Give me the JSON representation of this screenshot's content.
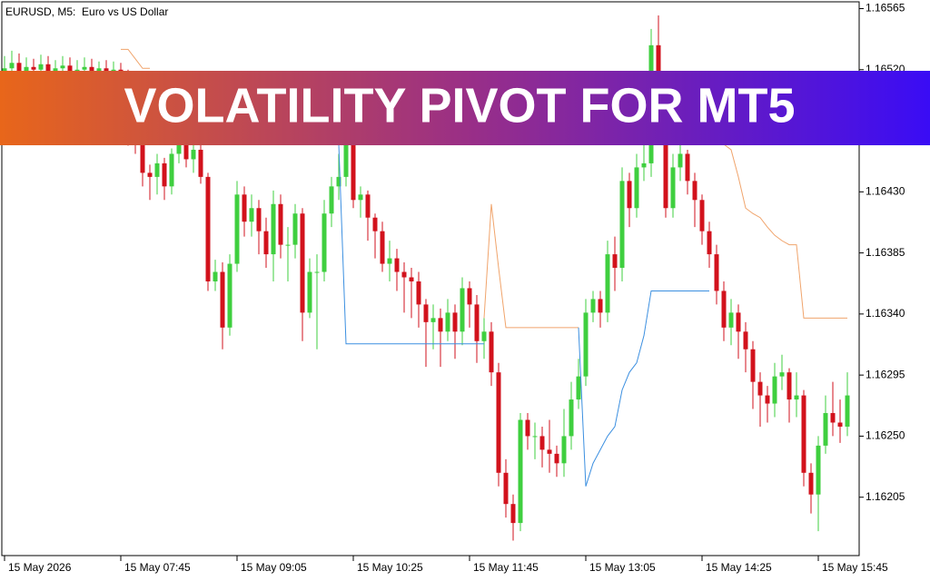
{
  "chart_data": {
    "type": "candlestick",
    "title": "EURUSD, M5:  Euro vs US Dollar",
    "annotation": "VOLATILITY PIVOT FOR MT5",
    "up_color": "#3fcf3f",
    "down_color": "#d2121c",
    "categories": [
      "15 May 2026",
      null,
      null,
      null,
      null,
      null,
      null,
      null,
      null,
      null,
      null,
      null,
      null,
      null,
      null,
      null,
      "15 May 07:45",
      null,
      null,
      null,
      null,
      null,
      null,
      null,
      null,
      null,
      null,
      null,
      null,
      null,
      null,
      null,
      "15 May 09:05",
      null,
      null,
      null,
      null,
      null,
      null,
      null,
      null,
      null,
      null,
      null,
      null,
      null,
      null,
      null,
      "15 May 10:25",
      null,
      null,
      null,
      null,
      null,
      null,
      null,
      null,
      null,
      null,
      null,
      null,
      null,
      null,
      null,
      "15 May 11:45",
      null,
      null,
      null,
      null,
      null,
      null,
      null,
      null,
      null,
      null,
      null,
      null,
      null,
      null,
      null,
      "15 May 13:05",
      null,
      null,
      null,
      null,
      null,
      null,
      null,
      null,
      null,
      null,
      null,
      null,
      null,
      null,
      null,
      "15 May 14:25",
      null,
      null,
      null,
      null,
      null,
      null,
      null,
      null,
      null,
      null,
      null,
      null,
      null,
      null,
      null,
      "15 May 15:45",
      null,
      null,
      null,
      null
    ],
    "open": [
      1.16518,
      1.16521,
      1.16525,
      1.16518,
      1.16522,
      1.1652,
      1.16524,
      1.16519,
      1.16521,
      1.16523,
      1.16518,
      1.1652,
      1.16522,
      1.16519,
      1.16521,
      1.16517,
      1.1652,
      1.16516,
      1.16471,
      1.16465,
      1.16444,
      1.16441,
      1.16451,
      1.16434,
      1.16458,
      1.16465,
      1.16454,
      1.16461,
      1.16441,
      1.16364,
      1.16371,
      1.1633,
      1.16377,
      1.16428,
      1.16408,
      1.16418,
      1.16401,
      1.16384,
      1.16421,
      1.16391,
      1.16391,
      1.16414,
      1.16341,
      1.16371,
      1.16371,
      1.16414,
      1.16434,
      1.16441,
      1.16465,
      1.16424,
      1.16428,
      1.16411,
      1.16401,
      1.16377,
      1.16381,
      1.16371,
      1.16367,
      1.16364,
      1.16347,
      1.16334,
      1.16337,
      1.16327,
      1.16341,
      1.16327,
      1.16359,
      1.16347,
      1.1632,
      1.16327,
      1.16297,
      1.16223,
      1.162,
      1.16186,
      1.16262,
      1.1625,
      1.1625,
      1.1624,
      1.16237,
      1.1623,
      1.1625,
      1.16277,
      1.16294,
      1.16341,
      1.16351,
      1.16341,
      1.16384,
      1.16374,
      1.16438,
      1.16418,
      1.16448,
      1.16451,
      1.16538,
      1.16511,
      1.16418,
      1.16448,
      1.16458,
      1.16438,
      1.16424,
      1.16401,
      1.16384,
      1.16357,
      1.1633,
      1.16341,
      1.16327,
      1.16314,
      1.1629,
      1.1628,
      1.16274,
      1.16294,
      1.16297,
      1.16277,
      1.1628,
      1.16223,
      1.16207,
      1.16243,
      1.16267,
      1.1626,
      1.16257
    ],
    "high": [
      1.1653,
      1.16534,
      1.16532,
      1.16529,
      1.16528,
      1.16531,
      1.1653,
      1.16527,
      1.1653,
      1.16529,
      1.16527,
      1.16529,
      1.16528,
      1.16526,
      1.16527,
      1.16526,
      1.16525,
      1.1652,
      1.16478,
      1.1647,
      1.1645,
      1.16458,
      1.16455,
      1.16462,
      1.16475,
      1.1647,
      1.16468,
      1.16465,
      1.16444,
      1.1638,
      1.16378,
      1.16384,
      1.16438,
      1.16434,
      1.16428,
      1.16424,
      1.16411,
      1.16431,
      1.16428,
      1.16404,
      1.16421,
      1.16418,
      1.16381,
      1.16384,
      1.16424,
      1.16441,
      1.16458,
      1.16485,
      1.16471,
      1.16434,
      1.16431,
      1.16414,
      1.16408,
      1.16394,
      1.16388,
      1.16378,
      1.16374,
      1.16371,
      1.16351,
      1.16347,
      1.16344,
      1.16351,
      1.16347,
      1.16367,
      1.16364,
      1.16354,
      1.16337,
      1.16334,
      1.16304,
      1.16233,
      1.16207,
      1.16267,
      1.16267,
      1.1626,
      1.16257,
      1.16262,
      1.16243,
      1.1627,
      1.1629,
      1.16307,
      1.16351,
      1.16357,
      1.16357,
      1.16394,
      1.16397,
      1.16448,
      1.16444,
      1.16458,
      1.16471,
      1.1655,
      1.1656,
      1.16518,
      1.16458,
      1.16468,
      1.16461,
      1.16444,
      1.16428,
      1.16408,
      1.16391,
      1.16364,
      1.16351,
      1.16347,
      1.16334,
      1.1632,
      1.16297,
      1.16287,
      1.16304,
      1.1631,
      1.163,
      1.16297,
      1.16284,
      1.1623,
      1.1625,
      1.1628,
      1.1629,
      1.16277,
      1.16297
    ],
    "low": [
      1.1651,
      1.16514,
      1.16511,
      1.16512,
      1.16514,
      1.16513,
      1.16512,
      1.16513,
      1.16515,
      1.16511,
      1.16512,
      1.16514,
      1.16512,
      1.16513,
      1.1651,
      1.16511,
      1.165,
      1.16464,
      1.16458,
      1.16434,
      1.16424,
      1.16428,
      1.16424,
      1.16428,
      1.16451,
      1.16448,
      1.16444,
      1.16436,
      1.16357,
      1.16357,
      1.16314,
      1.16324,
      1.16371,
      1.16397,
      1.16397,
      1.16384,
      1.16374,
      1.16364,
      1.16381,
      1.16364,
      1.16381,
      1.1632,
      1.16337,
      1.16314,
      1.16364,
      1.16404,
      1.16424,
      1.16434,
      1.16418,
      1.16411,
      1.16394,
      1.16381,
      1.16371,
      1.16364,
      1.16357,
      1.16341,
      1.16337,
      1.1633,
      1.16301,
      1.16314,
      1.16301,
      1.1632,
      1.16307,
      1.16317,
      1.1633,
      1.16304,
      1.16307,
      1.16287,
      1.16213,
      1.1619,
      1.16173,
      1.1618,
      1.1624,
      1.16233,
      1.16227,
      1.16223,
      1.1622,
      1.1622,
      1.1624,
      1.1627,
      1.16287,
      1.16334,
      1.1633,
      1.16334,
      1.16357,
      1.16364,
      1.16404,
      1.16411,
      1.16438,
      1.16441,
      1.16498,
      1.16411,
      1.16411,
      1.16438,
      1.16428,
      1.16404,
      1.16391,
      1.16374,
      1.16347,
      1.1632,
      1.16317,
      1.16307,
      1.16297,
      1.1627,
      1.16257,
      1.1626,
      1.16264,
      1.16284,
      1.1626,
      1.16264,
      1.16213,
      1.16193,
      1.1618,
      1.16237,
      1.1625,
      1.16245,
      1.1625
    ],
    "close": [
      1.16521,
      1.16525,
      1.16518,
      1.16522,
      1.1652,
      1.16524,
      1.16519,
      1.16521,
      1.16523,
      1.16518,
      1.1652,
      1.16522,
      1.16519,
      1.16521,
      1.16517,
      1.1652,
      1.16516,
      1.16471,
      1.16465,
      1.16444,
      1.16441,
      1.16451,
      1.16434,
      1.16458,
      1.16465,
      1.16454,
      1.16461,
      1.16441,
      1.16364,
      1.16371,
      1.1633,
      1.16377,
      1.16428,
      1.16408,
      1.16418,
      1.16401,
      1.16384,
      1.16421,
      1.16391,
      1.16391,
      1.16414,
      1.16341,
      1.16371,
      1.16371,
      1.16414,
      1.16434,
      1.16441,
      1.16465,
      1.16424,
      1.16428,
      1.16411,
      1.16401,
      1.16377,
      1.16381,
      1.16371,
      1.16367,
      1.16364,
      1.16347,
      1.16334,
      1.16337,
      1.16327,
      1.16341,
      1.16327,
      1.16359,
      1.16347,
      1.1632,
      1.16327,
      1.16297,
      1.16223,
      1.162,
      1.16186,
      1.16262,
      1.1625,
      1.1625,
      1.1624,
      1.16237,
      1.1623,
      1.1625,
      1.16277,
      1.16294,
      1.16341,
      1.16351,
      1.16341,
      1.16384,
      1.16374,
      1.16438,
      1.16418,
      1.16448,
      1.16451,
      1.16538,
      1.16511,
      1.16418,
      1.16448,
      1.16458,
      1.16438,
      1.16424,
      1.16401,
      1.16384,
      1.16357,
      1.1633,
      1.16341,
      1.16327,
      1.16314,
      1.1629,
      1.1628,
      1.16274,
      1.16294,
      1.16297,
      1.16277,
      1.1628,
      1.16223,
      1.16207,
      1.16243,
      1.16267,
      1.1626,
      1.16257,
      1.1628
    ],
    "lines": [
      {
        "color": "#f0a46c",
        "values": [
          null,
          null,
          null,
          null,
          null,
          null,
          null,
          null,
          null,
          null,
          null,
          null,
          null,
          null,
          null,
          null,
          1.16535,
          1.16535,
          1.16528,
          1.16521,
          1.16521,
          null,
          null,
          null,
          null,
          null,
          null,
          null,
          null,
          null,
          null,
          null,
          null,
          null,
          null,
          null,
          null,
          null,
          null,
          null,
          null,
          null,
          null,
          null,
          null,
          null,
          null,
          null,
          null,
          null,
          null,
          null,
          null,
          null,
          null,
          null,
          null,
          null,
          null,
          null,
          null,
          null,
          null,
          null,
          null,
          null,
          1.16337,
          1.16421,
          1.16374,
          1.1633,
          1.1633,
          1.1633,
          1.1633,
          1.1633,
          1.1633,
          1.1633,
          1.1633,
          1.1633,
          1.1633,
          1.1633,
          null,
          null,
          null,
          null,
          null,
          null,
          null,
          null,
          null,
          null,
          null,
          null,
          null,
          null,
          null,
          null,
          null,
          1.16465,
          1.16465,
          1.16465,
          1.16461,
          1.16441,
          1.16418,
          1.16414,
          1.16411,
          1.16404,
          1.16398,
          1.16394,
          1.16391,
          1.16391,
          1.16337,
          1.16337,
          1.16337,
          1.16337,
          1.16337,
          1.16337,
          1.16337
        ]
      },
      {
        "color": "#3b8fe0",
        "values": [
          null,
          null,
          null,
          null,
          null,
          null,
          null,
          null,
          null,
          null,
          null,
          null,
          null,
          null,
          null,
          null,
          null,
          null,
          null,
          null,
          null,
          null,
          null,
          null,
          null,
          null,
          null,
          null,
          null,
          null,
          null,
          null,
          null,
          null,
          null,
          null,
          null,
          null,
          null,
          null,
          null,
          null,
          null,
          null,
          null,
          null,
          1.16465,
          1.16318,
          1.16318,
          1.16318,
          1.16318,
          1.16318,
          1.16318,
          1.16318,
          1.16318,
          1.16318,
          1.16318,
          1.16318,
          1.16318,
          1.16318,
          1.16318,
          1.16318,
          1.16318,
          1.16318,
          1.16318,
          1.16318,
          1.16318,
          null,
          null,
          null,
          null,
          null,
          null,
          null,
          null,
          null,
          null,
          null,
          null,
          1.1633,
          1.16213,
          1.1623,
          1.1624,
          1.1625,
          1.16257,
          1.16284,
          1.16297,
          1.16304,
          1.16324,
          1.16357,
          1.16357,
          1.16357,
          1.16357,
          1.16357,
          1.16357,
          1.16357,
          1.16357,
          1.16357,
          null,
          null,
          null,
          null,
          null,
          null,
          null,
          null,
          null,
          null,
          null,
          null,
          null,
          null,
          null,
          null,
          null,
          null,
          null
        ]
      }
    ],
    "ylim": [
      1.16162,
      1.1657
    ],
    "yticks": [
      1.16565,
      {
        "value": 1.1652,
        "label": "1.16520"
      },
      {
        "value": 1.1643,
        "label": "1.16430"
      },
      1.16385,
      {
        "value": 1.1634,
        "label": "1.16340"
      },
      1.16295,
      {
        "value": 1.1625,
        "label": "1.16250"
      },
      1.16205
    ]
  }
}
